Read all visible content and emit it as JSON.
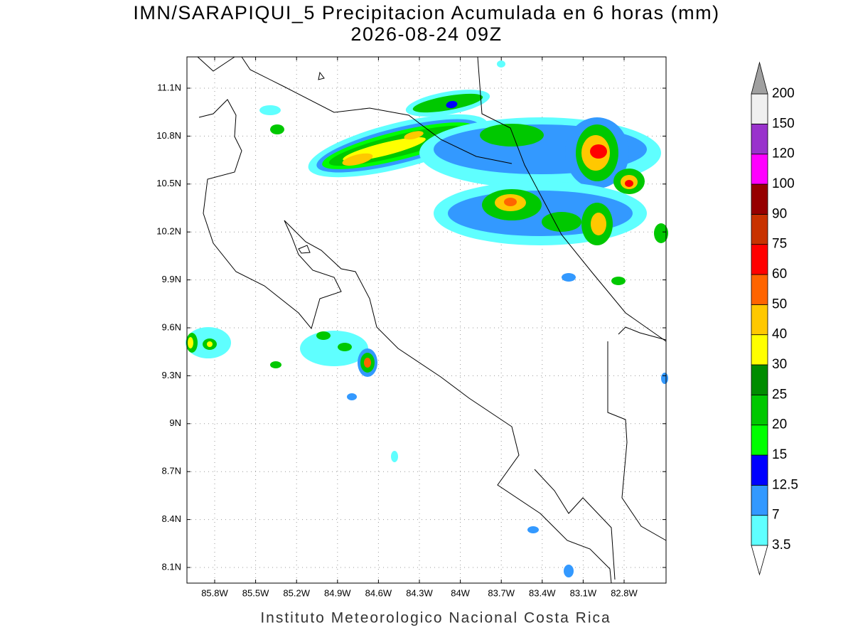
{
  "title": "IMN/SARAPIQUI_5 Precipitacion Acumulada en 6 horas (mm)",
  "subtitle": "2026-08-24 09Z",
  "map": {
    "lat_labels": [
      "11.1N",
      "10.8N",
      "10.5N",
      "10.2N",
      "9.9N",
      "9.6N",
      "9.3N",
      "9N",
      "8.7N",
      "8.4N",
      "8.1N"
    ],
    "lon_labels": [
      "85.8W",
      "85.5W",
      "85.2W",
      "84.9W",
      "84.6W",
      "84.3W",
      "84W",
      "83.7W",
      "83.4W",
      "83.1W",
      "82.8W"
    ]
  },
  "legend": {
    "levels": [
      "3.5",
      "7",
      "12.5",
      "15",
      "20",
      "25",
      "30",
      "40",
      "50",
      "60",
      "75",
      "90",
      "100",
      "120",
      "150",
      "200"
    ],
    "colors": [
      "#5fffff",
      "#3399ff",
      "#0000ff",
      "#00ff00",
      "#00c800",
      "#008c00",
      "#ffff00",
      "#ffc800",
      "#ff6400",
      "#ff0000",
      "#c83200",
      "#960000",
      "#ff00ff",
      "#9933cc",
      "#f0f0f0"
    ],
    "over_color": "#a0a0a0",
    "under_color": "#ffffff"
  },
  "footer": "Instituto Meteorologico Nacional Costa Rica"
}
